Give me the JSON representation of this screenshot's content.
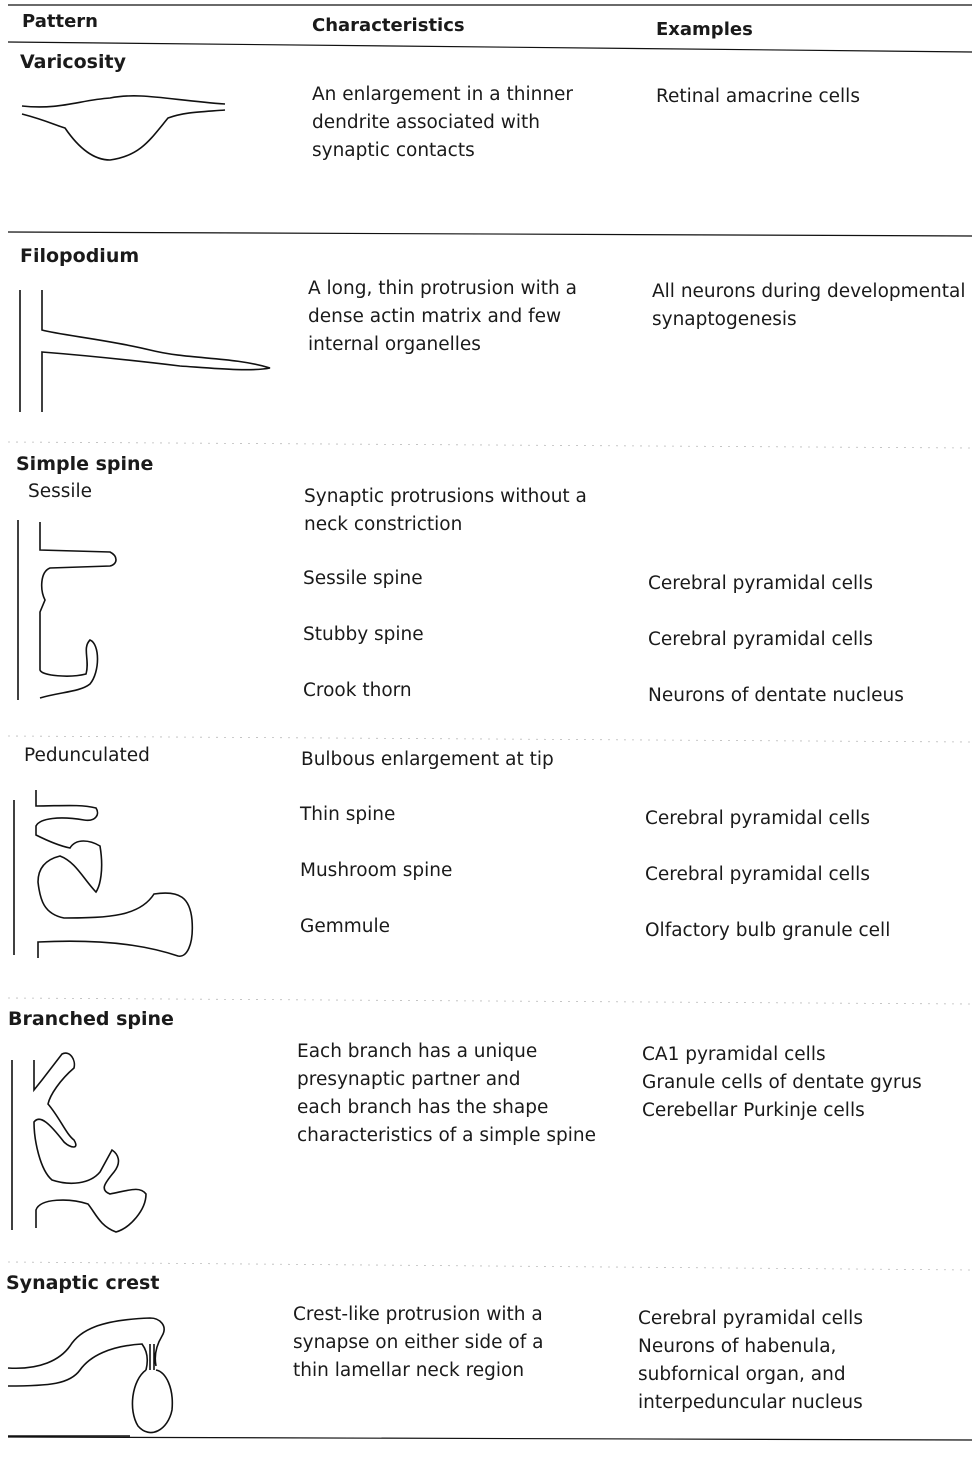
{
  "header": {
    "pattern": "Pattern",
    "characteristics": "Characteristics",
    "examples": "Examples"
  },
  "rows": [
    {
      "pattern": "Varicosity",
      "characteristics": [
        "An enlargement in a thinner",
        "dendrite associated with",
        "synaptic contacts"
      ],
      "examples": [
        "Retinal amacrine cells"
      ]
    },
    {
      "pattern": "Filopodium",
      "characteristics": [
        "A long, thin protrusion with a",
        "dense actin matrix and few",
        "internal organelles"
      ],
      "examples": [
        "All neurons during developmental",
        "synaptogenesis"
      ]
    },
    {
      "pattern": "Simple spine",
      "subtypes": [
        {
          "label": "Sessile",
          "characteristics": [
            "Synaptic protrusions without a",
            "neck constriction"
          ],
          "items": [
            {
              "name": "Sessile spine",
              "example": "Cerebral pyramidal cells"
            },
            {
              "name": "Stubby spine",
              "example": "Cerebral pyramidal cells"
            },
            {
              "name": "Crook thorn",
              "example": "Neurons of dentate nucleus"
            }
          ]
        },
        {
          "label": "Pedunculated",
          "characteristics": [
            "Bulbous enlargement at tip"
          ],
          "items": [
            {
              "name": "Thin spine",
              "example": "Cerebral pyramidal cells"
            },
            {
              "name": "Mushroom spine",
              "example": "Cerebral pyramidal cells"
            },
            {
              "name": "Gemmule",
              "example": "Olfactory bulb granule cell"
            }
          ]
        }
      ]
    },
    {
      "pattern": "Branched spine",
      "characteristics": [
        "Each branch has a unique",
        "presynaptic partner and",
        "each branch has the shape",
        "characteristics of a simple spine"
      ],
      "examples": [
        "CA1 pyramidal cells",
        "Granule cells of dentate gyrus",
        "Cerebellar Purkinje cells"
      ]
    },
    {
      "pattern": "Synaptic crest",
      "characteristics": [
        "Crest-like protrusion with a",
        "synapse on either side of a",
        "thin lamellar neck region"
      ],
      "examples": [
        "Cerebral pyramidal cells",
        "Neurons of habenula,",
        "subfornical organ, and",
        "interpeduncular nucleus"
      ]
    }
  ]
}
